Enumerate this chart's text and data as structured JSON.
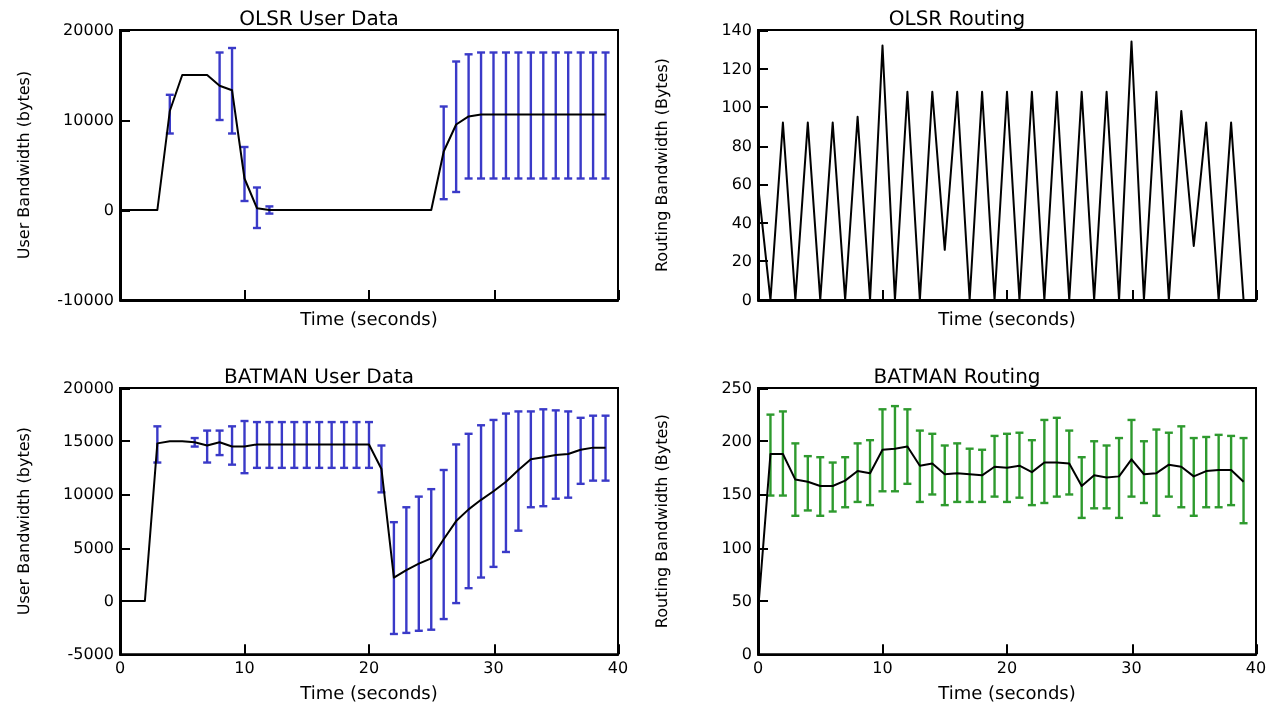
{
  "chart_data": [
    {
      "type": "line",
      "title": "OLSR User Data",
      "xlabel": "Time (seconds)",
      "ylabel": "User Bandwidth (bytes)",
      "x": [
        0,
        1,
        2,
        3,
        4,
        5,
        6,
        7,
        8,
        9,
        10,
        11,
        12,
        13,
        14,
        15,
        16,
        17,
        18,
        19,
        20,
        21,
        22,
        23,
        24,
        25,
        26,
        27,
        28,
        29,
        30,
        31,
        32,
        33,
        34,
        35,
        36,
        37,
        38,
        39
      ],
      "xlim": [
        0,
        40
      ],
      "xticks": [
        {
          "value": 0,
          "label": null
        },
        {
          "value": 10,
          "label": null
        },
        {
          "value": 20,
          "label": null
        },
        {
          "value": 30,
          "label": null
        },
        {
          "value": 40,
          "label": null
        }
      ],
      "ylim": [
        -10000,
        20000
      ],
      "yticks": [
        -10000,
        0,
        10000,
        20000
      ],
      "tick_labels": "y",
      "grid": false,
      "series": [
        {
          "color": "#000000",
          "values": [
            0,
            0,
            0,
            0,
            11000,
            15000,
            15000,
            15000,
            13800,
            13300,
            3500,
            200,
            0,
            0,
            0,
            0,
            0,
            0,
            0,
            0,
            0,
            0,
            0,
            0,
            0,
            0,
            6500,
            9500,
            10400,
            10600,
            10600,
            10600,
            10600,
            10600,
            10600,
            10600,
            10600,
            10600,
            10600,
            10600
          ],
          "errors": [
            null,
            null,
            null,
            null,
            [
              8500,
              12800
            ],
            null,
            null,
            null,
            [
              10000,
              17500
            ],
            [
              8500,
              18000
            ],
            [
              1000,
              7000
            ],
            [
              -2000,
              2500
            ],
            [
              -400,
              400
            ],
            null,
            null,
            null,
            null,
            null,
            null,
            null,
            null,
            null,
            null,
            null,
            null,
            null,
            [
              1200,
              11500
            ],
            [
              2000,
              16500
            ],
            [
              3500,
              17300
            ],
            [
              3500,
              17500
            ],
            [
              3500,
              17500
            ],
            [
              3500,
              17500
            ],
            [
              3500,
              17500
            ],
            [
              3500,
              17500
            ],
            [
              3500,
              17500
            ],
            [
              3500,
              17500
            ],
            [
              3500,
              17500
            ],
            [
              3500,
              17500
            ],
            [
              3500,
              17500
            ],
            [
              3500,
              17500
            ]
          ]
        }
      ]
    },
    {
      "type": "line",
      "title": "OLSR Routing",
      "xlabel": "Time (seconds)",
      "ylabel": "Routing Bandwidth (Bytes)",
      "x": [
        0,
        1,
        2,
        3,
        4,
        5,
        6,
        7,
        8,
        9,
        10,
        11,
        12,
        13,
        14,
        15,
        16,
        17,
        18,
        19,
        20,
        21,
        22,
        23,
        24,
        25,
        26,
        27,
        28,
        29,
        30,
        31,
        32,
        33,
        34,
        35,
        36,
        37,
        38,
        39
      ],
      "xlim": [
        0,
        40
      ],
      "xticks": [
        {
          "value": 0,
          "label": null
        },
        {
          "value": 10,
          "label": null
        },
        {
          "value": 20,
          "label": null
        },
        {
          "value": 30,
          "label": null
        },
        {
          "value": 40,
          "label": null
        }
      ],
      "ylim": [
        0,
        140
      ],
      "yticks": [
        0,
        20,
        40,
        60,
        80,
        100,
        120,
        140
      ],
      "tick_labels": "y",
      "grid": false,
      "series": [
        {
          "color": "#000000",
          "values": [
            60,
            0,
            92,
            0,
            92,
            0,
            92,
            0,
            95,
            0,
            132,
            0,
            108,
            0,
            108,
            26,
            108,
            0,
            108,
            0,
            108,
            0,
            108,
            0,
            108,
            0,
            108,
            0,
            108,
            0,
            134,
            0,
            108,
            0,
            98,
            28,
            92,
            0,
            92,
            0
          ]
        }
      ]
    },
    {
      "type": "line",
      "title": "BATMAN User Data",
      "xlabel": "Time (seconds)",
      "ylabel": "User Bandwidth (bytes)",
      "x": [
        0,
        1,
        2,
        3,
        4,
        5,
        6,
        7,
        8,
        9,
        10,
        11,
        12,
        13,
        14,
        15,
        16,
        17,
        18,
        19,
        20,
        21,
        22,
        23,
        24,
        25,
        26,
        27,
        28,
        29,
        30,
        31,
        32,
        33,
        34,
        35,
        36,
        37,
        38,
        39
      ],
      "xlim": [
        0,
        40
      ],
      "xticks": [
        0,
        10,
        20,
        30,
        40
      ],
      "ylim": [
        -5000,
        20000
      ],
      "yticks": [
        -5000,
        0,
        5000,
        10000,
        15000,
        20000
      ],
      "grid": false,
      "series": [
        {
          "color": "#000000",
          "values": [
            0,
            0,
            0,
            14800,
            15000,
            15000,
            14900,
            14600,
            14900,
            14500,
            14500,
            14700,
            14700,
            14700,
            14700,
            14700,
            14700,
            14700,
            14700,
            14700,
            14700,
            12400,
            2200,
            2900,
            3500,
            4000,
            5800,
            7500,
            8600,
            9500,
            10300,
            11200,
            12300,
            13300,
            13500,
            13700,
            13800,
            14200,
            14400,
            14400
          ],
          "errors": [
            null,
            null,
            null,
            [
              13000,
              16400
            ],
            null,
            null,
            [
              14500,
              15300
            ],
            [
              13000,
              16000
            ],
            [
              13700,
              16000
            ],
            [
              12800,
              16400
            ],
            [
              12000,
              16900
            ],
            [
              12500,
              16800
            ],
            [
              12500,
              16800
            ],
            [
              12500,
              16800
            ],
            [
              12500,
              16800
            ],
            [
              12500,
              16800
            ],
            [
              12500,
              16800
            ],
            [
              12500,
              16800
            ],
            [
              12500,
              16800
            ],
            [
              12500,
              16800
            ],
            [
              12500,
              16800
            ],
            [
              10200,
              14600
            ],
            [
              -3100,
              7400
            ],
            [
              -3000,
              8800
            ],
            [
              -2800,
              9800
            ],
            [
              -2700,
              10500
            ],
            [
              -1700,
              12300
            ],
            [
              -200,
              14700
            ],
            [
              1200,
              15700
            ],
            [
              2200,
              16500
            ],
            [
              3200,
              17000
            ],
            [
              4600,
              17600
            ],
            [
              6600,
              17800
            ],
            [
              8800,
              17800
            ],
            [
              8900,
              18000
            ],
            [
              9600,
              17900
            ],
            [
              9700,
              17800
            ],
            [
              11000,
              17200
            ],
            [
              11300,
              17400
            ],
            [
              11300,
              17400
            ]
          ]
        }
      ]
    },
    {
      "type": "line",
      "title": "BATMAN Routing",
      "xlabel": "Time (seconds)",
      "ylabel": "Routing Bandwidth (Bytes)",
      "x": [
        0,
        1,
        2,
        3,
        4,
        5,
        6,
        7,
        8,
        9,
        10,
        11,
        12,
        13,
        14,
        15,
        16,
        17,
        18,
        19,
        20,
        21,
        22,
        23,
        24,
        25,
        26,
        27,
        28,
        29,
        30,
        31,
        32,
        33,
        34,
        35,
        36,
        37,
        38,
        39
      ],
      "xlim": [
        0,
        40
      ],
      "xticks": [
        0,
        10,
        20,
        30,
        40
      ],
      "ylim": [
        0,
        250
      ],
      "yticks": [
        0,
        50,
        100,
        150,
        200,
        250
      ],
      "grid": false,
      "series": [
        {
          "color": "#000000",
          "values": [
            40,
            188,
            188,
            164,
            162,
            158,
            158,
            163,
            172,
            170,
            192,
            193,
            195,
            177,
            179,
            169,
            170,
            169,
            168,
            176,
            175,
            177,
            171,
            180,
            180,
            179,
            158,
            168,
            166,
            167,
            183,
            169,
            170,
            178,
            176,
            167,
            172,
            173,
            173,
            162
          ],
          "errors": [
            null,
            [
              149,
              225
            ],
            [
              149,
              228
            ],
            [
              130,
              198
            ],
            [
              135,
              186
            ],
            [
              130,
              185
            ],
            [
              134,
              180
            ],
            [
              138,
              185
            ],
            [
              143,
              198
            ],
            [
              140,
              201
            ],
            [
              153,
              230
            ],
            [
              153,
              233
            ],
            [
              160,
              230
            ],
            [
              143,
              210
            ],
            [
              150,
              207
            ],
            [
              140,
              196
            ],
            [
              143,
              198
            ],
            [
              143,
              193
            ],
            [
              143,
              192
            ],
            [
              148,
              205
            ],
            [
              143,
              207
            ],
            [
              147,
              208
            ],
            [
              140,
              201
            ],
            [
              142,
              220
            ],
            [
              148,
              222
            ],
            [
              150,
              210
            ],
            [
              128,
              185
            ],
            [
              137,
              200
            ],
            [
              137,
              196
            ],
            [
              128,
              203
            ],
            [
              148,
              220
            ],
            [
              142,
              200
            ],
            [
              130,
              211
            ],
            [
              148,
              208
            ],
            [
              138,
              214
            ],
            [
              130,
              203
            ],
            [
              138,
              204
            ],
            [
              138,
              206
            ],
            [
              140,
              205
            ],
            [
              123,
              203
            ]
          ]
        }
      ]
    }
  ]
}
